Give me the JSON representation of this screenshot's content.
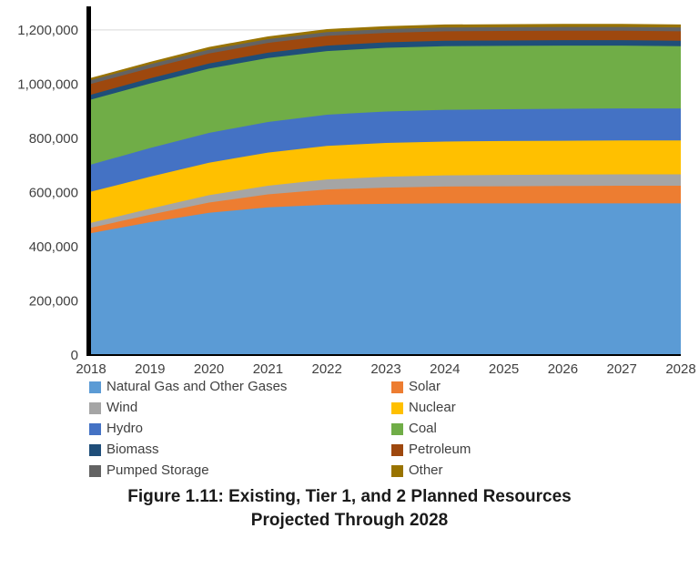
{
  "chart_data": {
    "type": "area",
    "stacked": true,
    "title": "Figure 1.11: Existing, Tier 1, and 2 Planned Resources Projected Through 2028",
    "title_lines": [
      "Figure 1.11: Existing, Tier 1, and 2 Planned Resources",
      "Projected Through 2028"
    ],
    "x": [
      2018,
      2019,
      2020,
      2021,
      2022,
      2023,
      2024,
      2025,
      2026,
      2027,
      2028
    ],
    "ylim": [
      0,
      1200000
    ],
    "ytick_interval": 200000,
    "ytick_labels": [
      "0",
      "200,000",
      "400,000",
      "600,000",
      "800,000",
      "1,000,000",
      "1,200,000"
    ],
    "grid": true,
    "legend_position": "bottom",
    "legend_columns": 2,
    "axis_color": "#000000",
    "grid_color": "#d9d9d9",
    "series": [
      {
        "name": "Natural Gas and Other Gases",
        "color": "#5B9BD5",
        "values": [
          450000,
          490000,
          525000,
          545000,
          555000,
          558000,
          560000,
          560000,
          560000,
          560000,
          560000
        ]
      },
      {
        "name": "Solar",
        "color": "#ED7D31",
        "values": [
          20000,
          28000,
          38000,
          48000,
          56000,
          60000,
          62000,
          63000,
          64000,
          65000,
          65000
        ]
      },
      {
        "name": "Wind",
        "color": "#A5A5A5",
        "values": [
          18000,
          22000,
          27000,
          32000,
          37000,
          40000,
          41000,
          42000,
          42000,
          42000,
          42000
        ]
      },
      {
        "name": "Nuclear",
        "color": "#FFC000",
        "values": [
          115000,
          118000,
          120000,
          122000,
          124000,
          125000,
          125000,
          125000,
          125000,
          125000,
          125000
        ]
      },
      {
        "name": "Hydro",
        "color": "#4472C4",
        "values": [
          100000,
          106000,
          110000,
          113000,
          115000,
          116000,
          117000,
          117000,
          118000,
          118000,
          118000
        ]
      },
      {
        "name": "Coal",
        "color": "#70AD47",
        "values": [
          240000,
          238000,
          237000,
          236000,
          235000,
          235000,
          235000,
          234000,
          233000,
          232000,
          230000
        ]
      },
      {
        "name": "Biomass",
        "color": "#1F4E79",
        "values": [
          18000,
          19000,
          19000,
          20000,
          20000,
          20000,
          20000,
          20000,
          20000,
          20000,
          20000
        ]
      },
      {
        "name": "Petroleum",
        "color": "#9E480E",
        "values": [
          40000,
          38000,
          37000,
          36000,
          36000,
          35000,
          35000,
          35000,
          35000,
          35000,
          35000
        ]
      },
      {
        "name": "Pumped Storage",
        "color": "#636363",
        "values": [
          14000,
          14000,
          14000,
          14000,
          14000,
          14000,
          14000,
          14000,
          14000,
          14000,
          14000
        ]
      },
      {
        "name": "Other",
        "color": "#997300",
        "values": [
          8000,
          9000,
          10000,
          10000,
          11000,
          11000,
          11000,
          11000,
          11000,
          11000,
          11000
        ]
      }
    ],
    "legend_order": [
      "Natural Gas and Other Gases",
      "Solar",
      "Wind",
      "Nuclear",
      "Hydro",
      "Coal",
      "Biomass",
      "Petroleum",
      "Pumped Storage",
      "Other"
    ]
  }
}
